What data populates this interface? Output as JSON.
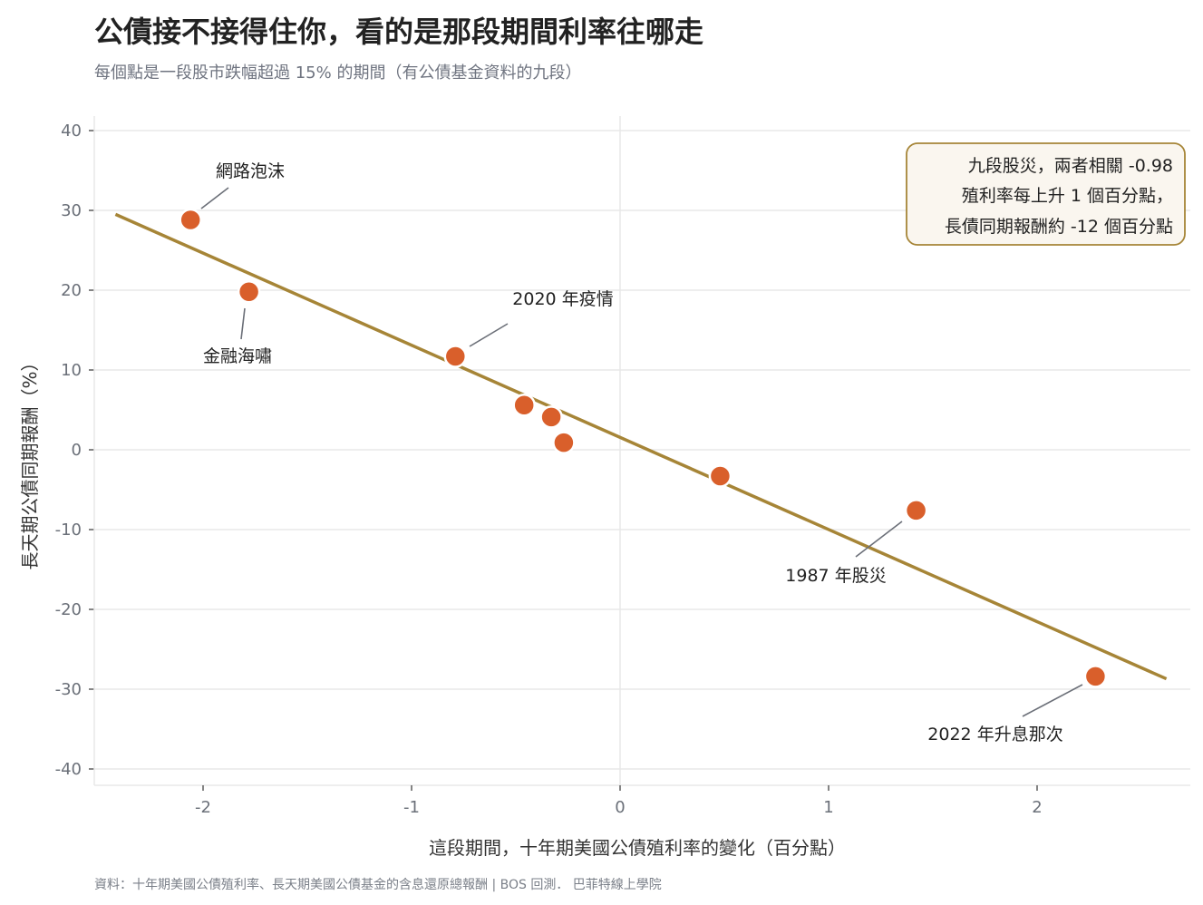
{
  "header": {
    "title": "公債接不接得住你，看的是那段期間利率往哪走",
    "subtitle": "每個點是一段股市跌幅超過 15% 的期間（有公債基金資料的九段）"
  },
  "source": "資料：十年期美國公債殖利率、長天期美國公債基金的含息還原總報酬 | BOS 回測．  巴菲特線上學院",
  "colors": {
    "point": "#d95f2b",
    "trend": "#a68537",
    "box_border": "#a68537",
    "box_fill": "#faf6ef",
    "grid": "#e8e8e8"
  },
  "chart_data": {
    "type": "scatter",
    "xlabel": "這段期間，十年期美國公債殖利率的變化（百分點）",
    "ylabel": "長天期公債同期報酬（%）",
    "xlim": [
      -2.5,
      2.7
    ],
    "ylim": [
      -42,
      42
    ],
    "xticks": [
      -2,
      -1,
      0,
      1,
      2
    ],
    "yticks": [
      40,
      30,
      20,
      10,
      0,
      -10,
      -20,
      -30,
      -40
    ],
    "grid": "horizontal",
    "points": [
      {
        "x": -2.06,
        "y": 28.8,
        "label": "網路泡沫"
      },
      {
        "x": -1.78,
        "y": 19.8,
        "label": "金融海嘯"
      },
      {
        "x": -0.79,
        "y": 11.7,
        "label": "2020 年疫情"
      },
      {
        "x": -0.46,
        "y": 5.6,
        "label": ""
      },
      {
        "x": -0.33,
        "y": 4.1,
        "label": ""
      },
      {
        "x": -0.27,
        "y": 0.9,
        "label": ""
      },
      {
        "x": 0.48,
        "y": -3.3,
        "label": ""
      },
      {
        "x": 1.42,
        "y": -7.6,
        "label": "1987 年股災"
      },
      {
        "x": 2.28,
        "y": -28.4,
        "label": "2022 年升息那次"
      }
    ],
    "trendline": {
      "x": [
        -2.42,
        2.62
      ],
      "y": [
        29.5,
        -28.7
      ]
    },
    "annotation_box": {
      "position": "top-right",
      "lines": [
        "九段股災，兩者相關 -0.98",
        "殖利率每上升 1 個百分點，",
        "長債同期報酬約 -12 個百分點"
      ]
    }
  }
}
